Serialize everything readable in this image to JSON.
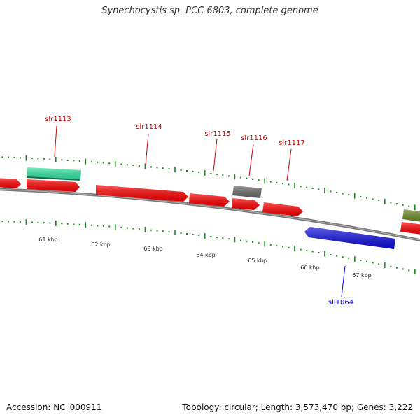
{
  "title": "Synechocystis sp. PCC 6803, complete genome",
  "footer": {
    "accession": "Accession: NC_000911",
    "summary": "Topology: circular; Length: 3,573,470 bp; Genes: 3,222"
  },
  "colors": {
    "forward_gene": "#ff0000",
    "reverse_gene": "#1010e0",
    "highlight_gene": "#33e8a6",
    "gray_gene": "#6a6a6a",
    "olive_gene": "#6b8b25",
    "tick": "#1a8a1a",
    "backbone": "#7a7a7a",
    "forward_label": "#cc0000",
    "reverse_label": "#0000cc"
  },
  "scale_labels": [
    "61 kbp",
    "62 kbp",
    "63 kbp",
    "64 kbp",
    "65 kbp",
    "66 kbp",
    "67 kbp"
  ],
  "gene_labels": [
    {
      "id": "slr1113",
      "text": "slr1113",
      "strand": "forward"
    },
    {
      "id": "slr1114",
      "text": "slr1114",
      "strand": "forward"
    },
    {
      "id": "slr1115",
      "text": "slr1115",
      "strand": "forward"
    },
    {
      "id": "slr1116",
      "text": "slr1116",
      "strand": "forward"
    },
    {
      "id": "slr1117",
      "text": "slr1117",
      "strand": "forward"
    },
    {
      "id": "sll1064",
      "text": "sll1064",
      "strand": "reverse"
    }
  ]
}
